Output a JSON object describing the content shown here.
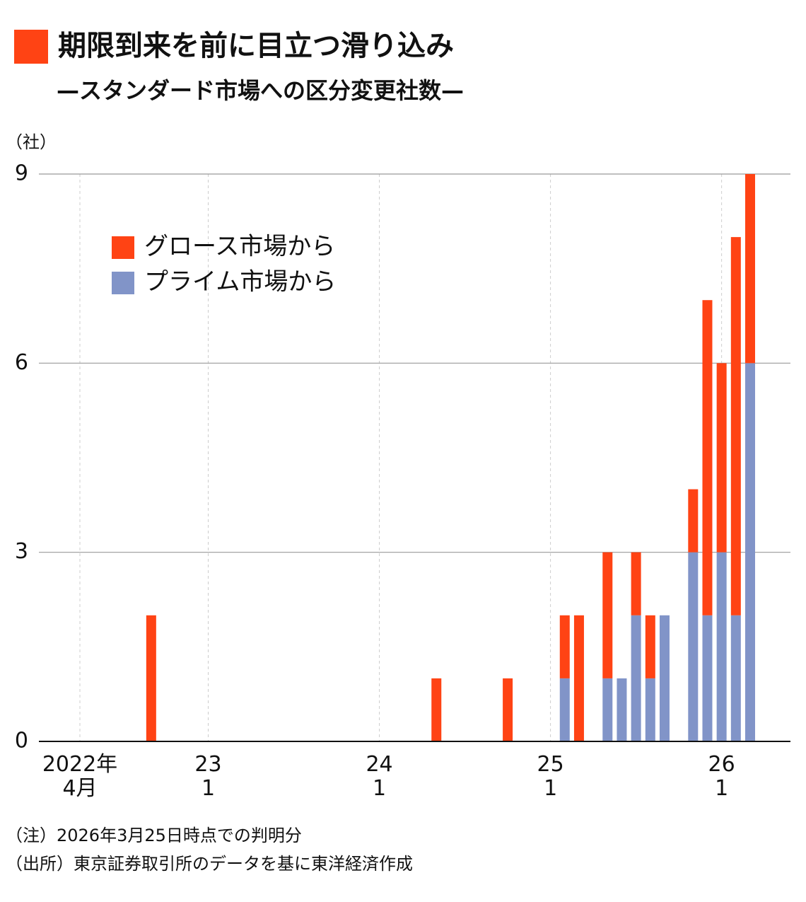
{
  "chart_data": {
    "type": "stacked_bar",
    "title": "期限到来を前に目立つ滑り込み",
    "subtitle": "—スタンダード市場への区分変更社数—",
    "y_axis_label": "（社）",
    "notes": [
      "（注）2026年3月25日時点での判明分",
      "（出所）東京証券取引所のデータを基に東洋経済作成"
    ],
    "categories": [
      "2022年\n4月",
      null,
      null,
      null,
      null,
      null,
      null,
      null,
      null,
      "23\n1",
      null,
      null,
      null,
      null,
      null,
      null,
      null,
      null,
      null,
      null,
      null,
      "24\n1",
      null,
      null,
      null,
      null,
      null,
      null,
      null,
      null,
      null,
      null,
      null,
      "25\n1",
      null,
      null,
      null,
      null,
      null,
      null,
      null,
      null,
      null,
      null,
      null,
      "26\n1",
      null,
      null
    ],
    "series": [
      {
        "name": "グロース市場から",
        "color": "#ff4314",
        "values": [
          0,
          0,
          0,
          0,
          0,
          2,
          0,
          0,
          0,
          0,
          0,
          0,
          0,
          0,
          0,
          0,
          0,
          0,
          0,
          0,
          0,
          0,
          0,
          0,
          0,
          1,
          0,
          0,
          0,
          0,
          1,
          0,
          0,
          0,
          1,
          2,
          0,
          2,
          0,
          1,
          1,
          0,
          0,
          1,
          5,
          3,
          6,
          3
        ]
      },
      {
        "name": "プライム市場から",
        "color": "#8194c8",
        "values": [
          0,
          0,
          0,
          0,
          0,
          0,
          0,
          0,
          0,
          0,
          0,
          0,
          0,
          0,
          0,
          0,
          0,
          0,
          0,
          0,
          0,
          0,
          0,
          0,
          0,
          0,
          0,
          0,
          0,
          0,
          0,
          0,
          0,
          0,
          1,
          0,
          0,
          1,
          1,
          2,
          1,
          2,
          0,
          3,
          2,
          3,
          2,
          6
        ]
      }
    ],
    "ylim": [
      0,
      9
    ],
    "yticks": [
      0,
      3,
      6,
      9
    ],
    "grid": true,
    "legend": "upper left"
  }
}
